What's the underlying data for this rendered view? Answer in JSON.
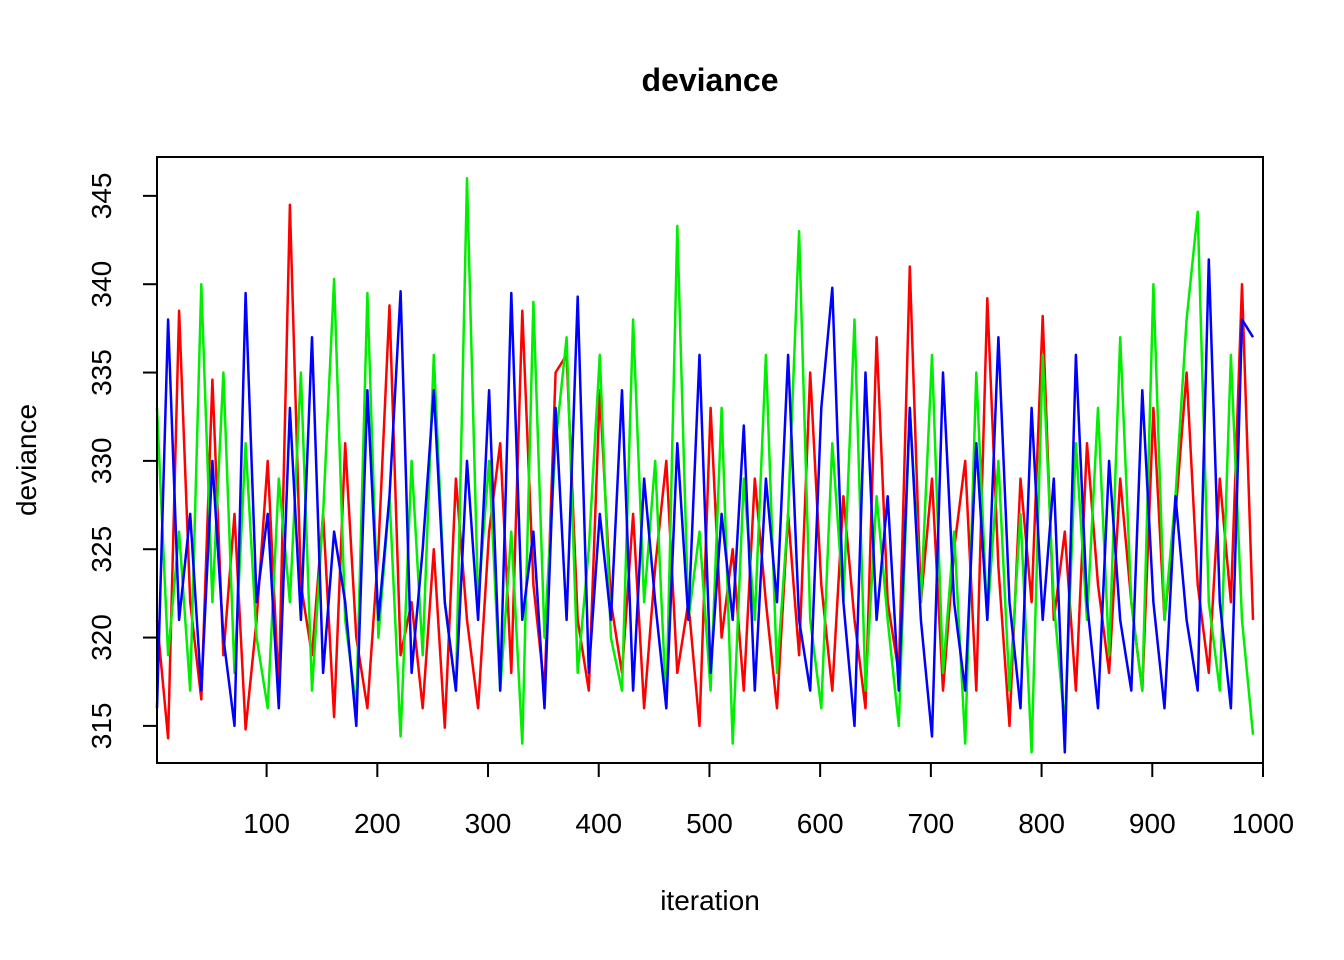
{
  "chart_data": {
    "type": "line",
    "title": "deviance",
    "xlabel": "iteration",
    "ylabel": "deviance",
    "xlim": [
      1,
      1000
    ],
    "ylim": [
      312.9,
      347.2
    ],
    "x_ticks": [
      100,
      200,
      300,
      400,
      500,
      600,
      700,
      800,
      900,
      1000
    ],
    "y_ticks": [
      315,
      320,
      325,
      330,
      335,
      340,
      345
    ],
    "grid": false,
    "legend": "none",
    "series_sampling": "every 10th iteration starting at 1 (approximate trace read from the plot)",
    "series": [
      {
        "color": "#ff0000",
        "x": [
          1,
          11,
          21,
          31,
          41,
          51,
          61,
          71,
          81,
          91,
          101,
          111,
          121,
          131,
          141,
          151,
          161,
          171,
          181,
          191,
          201,
          211,
          221,
          231,
          241,
          251,
          261,
          271,
          281,
          291,
          301,
          311,
          321,
          331,
          341,
          351,
          361,
          371,
          381,
          391,
          401,
          411,
          421,
          431,
          441,
          451,
          461,
          471,
          481,
          491,
          501,
          511,
          521,
          531,
          541,
          551,
          561,
          571,
          581,
          591,
          601,
          611,
          621,
          631,
          641,
          651,
          661,
          671,
          681,
          691,
          701,
          711,
          721,
          731,
          741,
          751,
          761,
          771,
          781,
          791,
          801,
          811,
          821,
          831,
          841,
          851,
          861,
          871,
          881,
          891,
          901,
          911,
          921,
          931,
          941,
          951,
          961,
          971,
          981,
          991
        ],
        "y": [
          321,
          314.3,
          338.5,
          322,
          316.5,
          334.6,
          319,
          327,
          314.8,
          321,
          330,
          317,
          344.5,
          323,
          319,
          327,
          315.5,
          331,
          320,
          316,
          325,
          338.8,
          319,
          322,
          316,
          325,
          314.9,
          329,
          321,
          316,
          326,
          331,
          318,
          338.5,
          323,
          317,
          335,
          336,
          321,
          317,
          334,
          322,
          318,
          327,
          316,
          324,
          330,
          318,
          322,
          315,
          333,
          320,
          325,
          317,
          329,
          322,
          316,
          327,
          319,
          335,
          323,
          317,
          328,
          321,
          316,
          337,
          322,
          318,
          341,
          322,
          329,
          317,
          325,
          330,
          317,
          339.2,
          324,
          315,
          329,
          322,
          338.2,
          321,
          326,
          317,
          331,
          323,
          318,
          329,
          322,
          317,
          333,
          321,
          327,
          335,
          323,
          318,
          329,
          322,
          340,
          321
        ]
      },
      {
        "color": "#00ee00",
        "x": [
          1,
          11,
          21,
          31,
          41,
          51,
          61,
          71,
          81,
          91,
          101,
          111,
          121,
          131,
          141,
          151,
          161,
          171,
          181,
          191,
          201,
          211,
          221,
          231,
          241,
          251,
          261,
          271,
          281,
          291,
          301,
          311,
          321,
          331,
          341,
          351,
          361,
          371,
          381,
          391,
          401,
          411,
          421,
          431,
          441,
          451,
          461,
          471,
          481,
          491,
          501,
          511,
          521,
          531,
          541,
          551,
          561,
          571,
          581,
          591,
          601,
          611,
          621,
          631,
          641,
          651,
          661,
          671,
          681,
          691,
          701,
          711,
          721,
          731,
          741,
          751,
          761,
          771,
          781,
          791,
          801,
          811,
          821,
          831,
          841,
          851,
          861,
          871,
          881,
          891,
          901,
          911,
          921,
          931,
          941,
          951,
          961,
          971,
          981,
          991
        ],
        "y": [
          333,
          319,
          326,
          317,
          340,
          322,
          335,
          318,
          331,
          320,
          316,
          329,
          322,
          335,
          317,
          327,
          340.3,
          321,
          316,
          339.5,
          320,
          328,
          314.4,
          330,
          319,
          336,
          322,
          317,
          346,
          322,
          330,
          317,
          326,
          314,
          339,
          320,
          331,
          337,
          318,
          325,
          336,
          320,
          317,
          338,
          322,
          330,
          316,
          343.3,
          321,
          326,
          317,
          333,
          314,
          329,
          321,
          336,
          318,
          327,
          343,
          321,
          316,
          331,
          322,
          338,
          317,
          328,
          321,
          315,
          333,
          322,
          336,
          318,
          326,
          314,
          335,
          321,
          330,
          317,
          327,
          313.5,
          336,
          322,
          315,
          331,
          321,
          333,
          319,
          337,
          322,
          317,
          340,
          321,
          328,
          338,
          344.1,
          322,
          317,
          336,
          321,
          314.5
        ]
      },
      {
        "color": "#0000ff",
        "x": [
          1,
          11,
          21,
          31,
          41,
          51,
          61,
          71,
          81,
          91,
          101,
          111,
          121,
          131,
          141,
          151,
          161,
          171,
          181,
          191,
          201,
          211,
          221,
          231,
          241,
          251,
          261,
          271,
          281,
          291,
          301,
          311,
          321,
          331,
          341,
          351,
          361,
          371,
          381,
          391,
          401,
          411,
          421,
          431,
          441,
          451,
          461,
          471,
          481,
          491,
          501,
          511,
          521,
          531,
          541,
          551,
          561,
          571,
          581,
          591,
          601,
          611,
          621,
          631,
          641,
          651,
          661,
          671,
          681,
          691,
          701,
          711,
          721,
          731,
          741,
          751,
          761,
          771,
          781,
          791,
          801,
          811,
          821,
          831,
          841,
          851,
          861,
          871,
          881,
          891,
          901,
          911,
          921,
          931,
          941,
          951,
          961,
          971,
          981,
          991
        ],
        "y": [
          316,
          338,
          321,
          327,
          317,
          330,
          320,
          315,
          339.5,
          322,
          327,
          316,
          333,
          321,
          337,
          318,
          326,
          322,
          315,
          334,
          321,
          328,
          339.6,
          318,
          325,
          334,
          322,
          317,
          330,
          321,
          334,
          317,
          339.5,
          321,
          326,
          316,
          333,
          321,
          339.3,
          318,
          327,
          321,
          334,
          317,
          329,
          322,
          316,
          331,
          321,
          336,
          318,
          327,
          321,
          332,
          317,
          329,
          322,
          336,
          321,
          317,
          333,
          339.8,
          322,
          315,
          335,
          321,
          328,
          317,
          333,
          321,
          314.4,
          335,
          322,
          317,
          331,
          321,
          337,
          322,
          316,
          333,
          321,
          329,
          313.5,
          336,
          322,
          316,
          330,
          321,
          317,
          334,
          322,
          316,
          328,
          321,
          317,
          341.4,
          322,
          316,
          338,
          337
        ]
      }
    ]
  }
}
